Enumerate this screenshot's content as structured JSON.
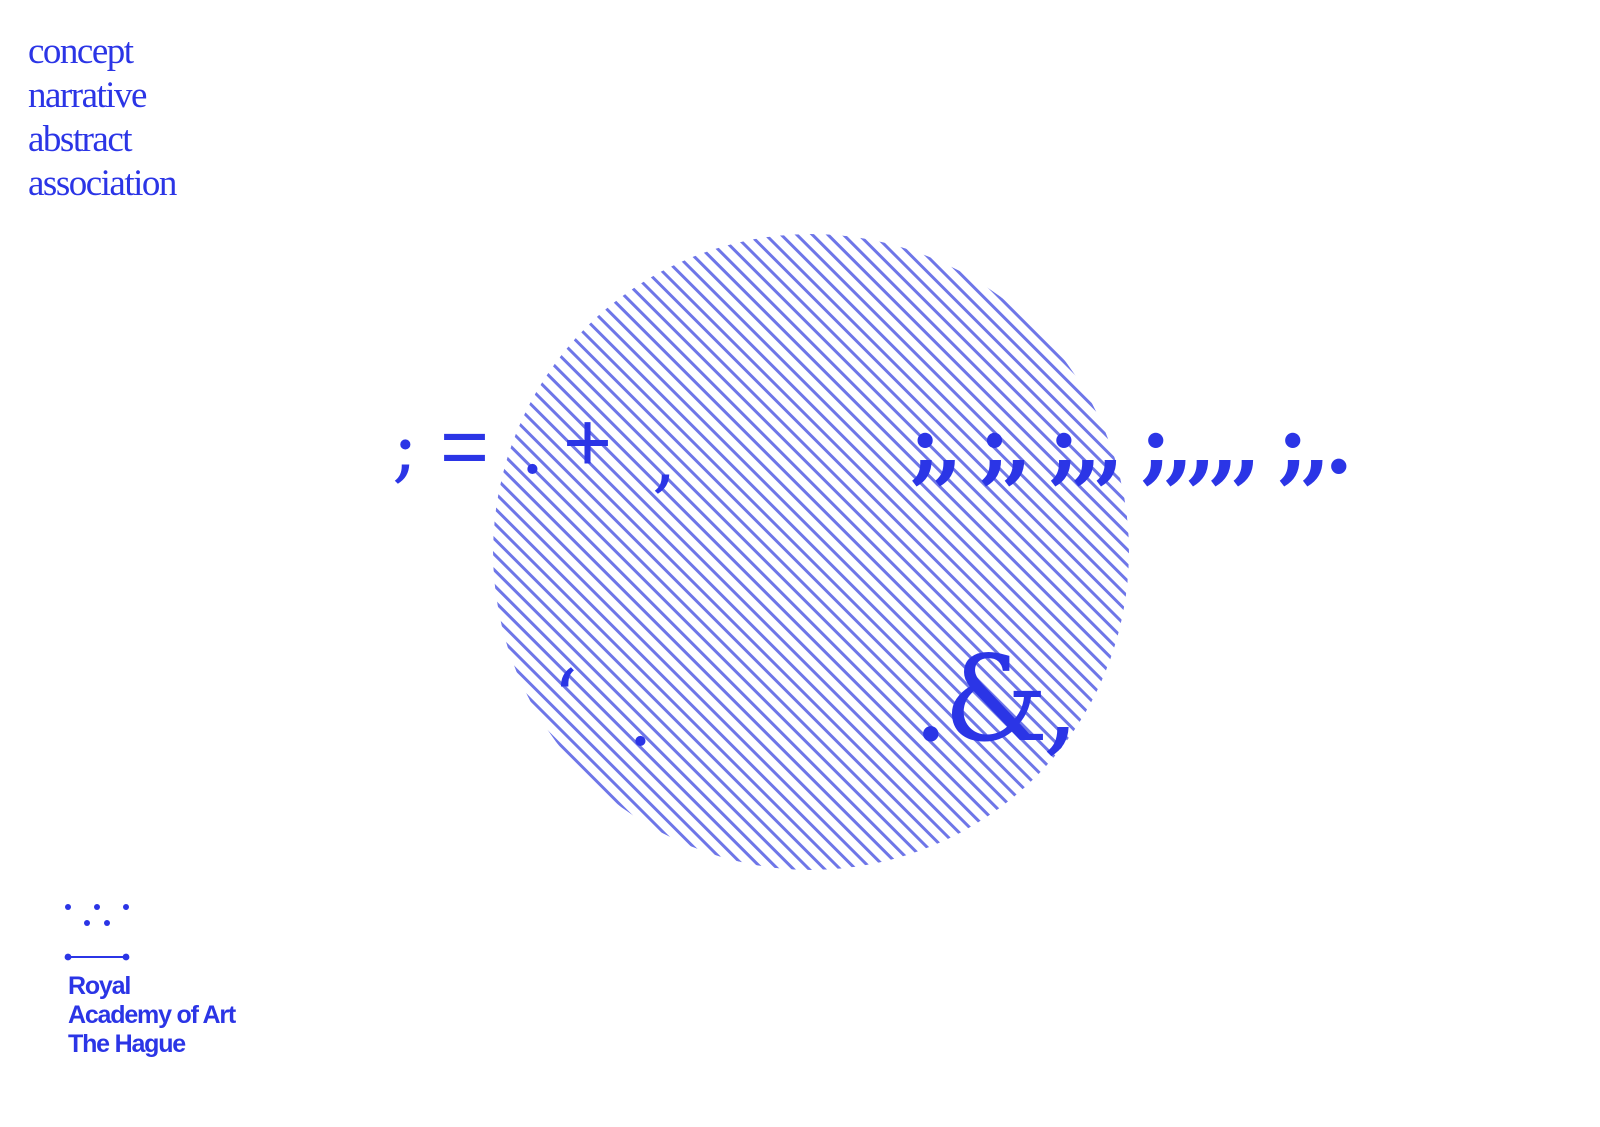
{
  "colors": {
    "accent": "#2b35e6",
    "hatch": "#6e76e8",
    "background": "#ffffff"
  },
  "concepts": [
    "concept",
    "narrative",
    "abstract",
    "association"
  ],
  "glyphs": {
    "semicolon": ";",
    "equals": "=",
    "period_1": ".",
    "plus": "+",
    "comma_1": ",",
    "sequence": ";, ;, ;,, ;,,,, ;,.",
    "quote": "‘",
    "period_2": ".",
    "ampersand": ".&,"
  },
  "logo": {
    "icon": "dotted-logo-mark-icon",
    "lines": [
      "Royal",
      "Academy of Art",
      "The Hague"
    ]
  }
}
